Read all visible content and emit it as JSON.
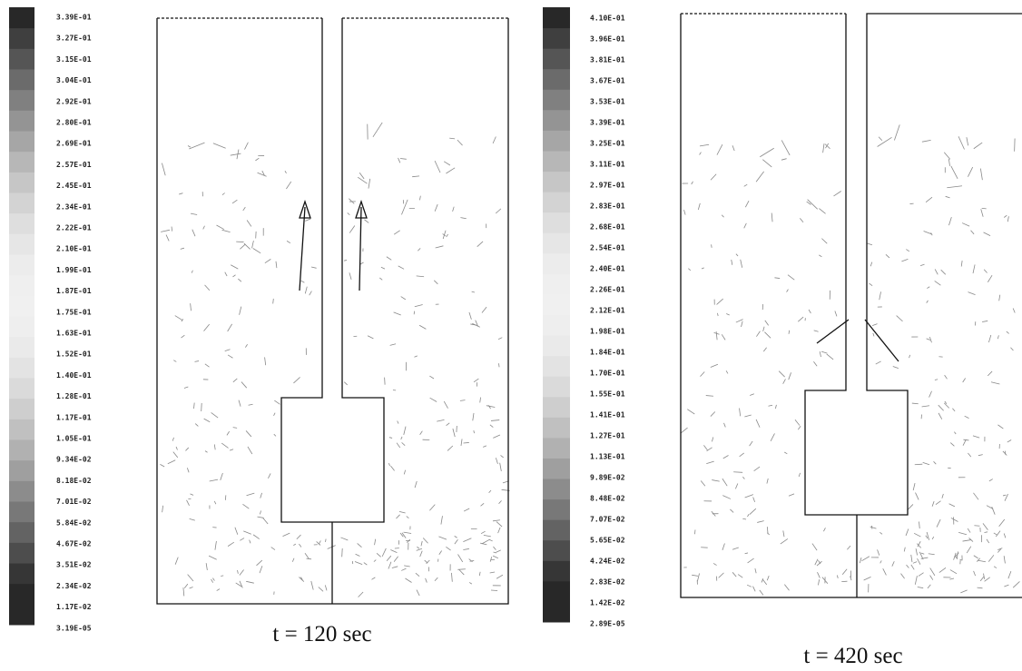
{
  "panels": [
    {
      "legend": [
        "3.39E-01",
        "3.27E-01",
        "3.15E-01",
        "3.04E-01",
        "2.92E-01",
        "2.80E-01",
        "2.69E-01",
        "2.57E-01",
        "2.45E-01",
        "2.34E-01",
        "2.22E-01",
        "2.10E-01",
        "1.99E-01",
        "1.87E-01",
        "1.75E-01",
        "1.63E-01",
        "1.52E-01",
        "1.40E-01",
        "1.28E-01",
        "1.17E-01",
        "1.05E-01",
        "9.34E-02",
        "8.18E-02",
        "7.01E-02",
        "5.84E-02",
        "4.67E-02",
        "3.51E-02",
        "2.34E-02",
        "1.17E-02",
        "3.19E-05"
      ],
      "caption": "t = 120 sec"
    },
    {
      "legend": [
        "4.10E-01",
        "3.96E-01",
        "3.81E-01",
        "3.67E-01",
        "3.53E-01",
        "3.39E-01",
        "3.25E-01",
        "3.11E-01",
        "2.97E-01",
        "2.83E-01",
        "2.68E-01",
        "2.54E-01",
        "2.40E-01",
        "2.26E-01",
        "2.12E-01",
        "1.98E-01",
        "1.84E-01",
        "1.70E-01",
        "1.55E-01",
        "1.41E-01",
        "1.27E-01",
        "1.13E-01",
        "9.89E-02",
        "8.48E-02",
        "7.07E-02",
        "5.65E-02",
        "4.24E-02",
        "2.83E-02",
        "1.42E-02",
        "2.89E-05"
      ],
      "caption": "t = 420 sec"
    }
  ]
}
